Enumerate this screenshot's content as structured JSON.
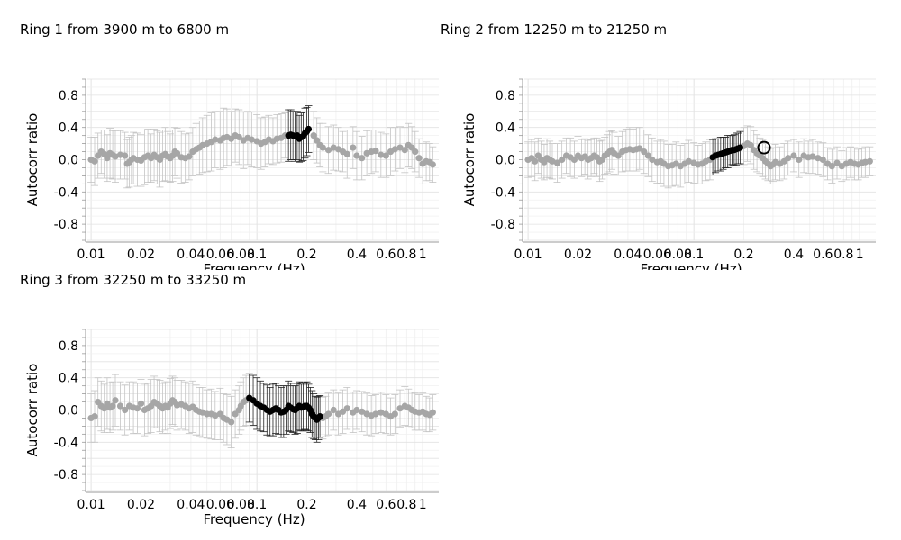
{
  "chart_data": [
    {
      "type": "scatter",
      "title": "Ring 1 from 3900 m to 6800 m",
      "xlabel": "Frequency (Hz)",
      "ylabel": "Autocorr ratio",
      "xscale": "log",
      "xlim": [
        0.0095,
        1.25
      ],
      "ylim": [
        -1.0,
        1.0
      ],
      "xticks": [
        0.01,
        0.02,
        0.04,
        0.06,
        0.08,
        0.1,
        0.2,
        0.4,
        0.6,
        0.8,
        1
      ],
      "xtick_labels": [
        "0.01",
        "0.02",
        "0.04",
        "0.06",
        "0.08",
        "0.1",
        "0.2",
        "0.4",
        "0.6",
        "0.8",
        "1"
      ],
      "yticks": [
        -0.8,
        -0.4,
        0.0,
        0.4,
        0.8
      ],
      "ytick_labels": [
        "-0.8",
        "-0.4",
        "0.0",
        "0.4",
        "0.8"
      ],
      "grid": true,
      "series": [
        {
          "color": "#a6a6a6",
          "x": [
            0.01,
            0.0105,
            0.011,
            0.0115,
            0.012,
            0.0125,
            0.013,
            0.0135,
            0.014,
            0.015,
            0.016,
            0.0165,
            0.017,
            0.0175,
            0.018,
            0.019,
            0.02,
            0.021,
            0.022,
            0.023,
            0.024,
            0.025,
            0.026,
            0.027,
            0.028,
            0.029,
            0.03,
            0.031,
            0.032,
            0.033,
            0.035,
            0.037,
            0.039,
            0.041,
            0.043,
            0.045,
            0.047,
            0.05,
            0.053,
            0.056,
            0.06,
            0.063,
            0.066,
            0.07,
            0.074,
            0.078,
            0.083,
            0.088,
            0.093,
            0.1,
            0.106,
            0.112,
            0.118,
            0.125,
            0.132,
            0.14,
            0.148,
            0.22,
            0.23,
            0.24,
            0.25,
            0.27,
            0.29,
            0.31,
            0.33,
            0.35,
            0.38,
            0.4,
            0.43,
            0.46,
            0.49,
            0.52,
            0.56,
            0.6,
            0.64,
            0.68,
            0.73,
            0.78,
            0.82,
            0.86,
            0.9,
            0.95,
            1.0,
            1.05,
            1.1,
            1.15
          ],
          "y": [
            0.0,
            -0.02,
            0.05,
            0.1,
            0.07,
            0.02,
            0.08,
            0.06,
            0.04,
            0.06,
            0.05,
            -0.05,
            -0.03,
            0.0,
            0.02,
            0.0,
            -0.01,
            0.03,
            0.05,
            0.02,
            0.06,
            0.03,
            0.0,
            0.05,
            0.07,
            0.04,
            0.02,
            0.05,
            0.1,
            0.08,
            0.03,
            0.02,
            0.04,
            0.1,
            0.13,
            0.15,
            0.18,
            0.2,
            0.22,
            0.25,
            0.24,
            0.27,
            0.28,
            0.26,
            0.3,
            0.28,
            0.24,
            0.27,
            0.25,
            0.23,
            0.2,
            0.22,
            0.25,
            0.23,
            0.26,
            0.27,
            0.3,
            0.3,
            0.24,
            0.18,
            0.15,
            0.12,
            0.15,
            0.13,
            0.1,
            0.07,
            0.15,
            0.05,
            0.02,
            0.08,
            0.1,
            0.11,
            0.06,
            0.05,
            0.1,
            0.13,
            0.15,
            0.12,
            0.18,
            0.15,
            0.1,
            0.02,
            -0.05,
            -0.02,
            -0.03,
            -0.06
          ],
          "err": [
            0.28,
            0.3,
            0.28,
            0.27,
            0.3,
            0.29,
            0.31,
            0.3,
            0.32,
            0.3,
            0.29,
            0.3,
            0.31,
            0.3,
            0.32,
            0.33,
            0.32,
            0.34,
            0.33,
            0.3,
            0.32,
            0.33,
            0.34,
            0.32,
            0.33,
            0.31,
            0.3,
            0.32,
            0.3,
            0.31,
            0.32,
            0.3,
            0.29,
            0.3,
            0.32,
            0.33,
            0.34,
            0.35,
            0.36,
            0.35,
            0.36,
            0.37,
            0.35,
            0.34,
            0.33,
            0.34,
            0.35,
            0.33,
            0.34,
            0.33,
            0.32,
            0.31,
            0.3,
            0.29,
            0.3,
            0.3,
            0.28,
            0.3,
            0.28,
            0.27,
            0.3,
            0.29,
            0.28,
            0.27,
            0.25,
            0.3,
            0.26,
            0.3,
            0.27,
            0.28,
            0.27,
            0.26,
            0.28,
            0.27,
            0.3,
            0.27,
            0.26,
            0.28,
            0.27,
            0.26,
            0.25,
            0.24,
            0.25,
            0.24,
            0.23,
            0.22
          ]
        },
        {
          "color": "#000000",
          "x": [
            0.155,
            0.16,
            0.165,
            0.17,
            0.175,
            0.18,
            0.185,
            0.19,
            0.195,
            0.2,
            0.205
          ],
          "y": [
            0.3,
            0.31,
            0.3,
            0.29,
            0.3,
            0.26,
            0.28,
            0.29,
            0.33,
            0.35,
            0.38
          ],
          "err": [
            0.32,
            0.31,
            0.3,
            0.31,
            0.3,
            0.29,
            0.3,
            0.3,
            0.31,
            0.3,
            0.29
          ]
        }
      ]
    },
    {
      "type": "scatter",
      "title": "Ring 2 from 12250 m to 21250 m",
      "xlabel": "Frequency (Hz)",
      "ylabel": "Autocorr ratio",
      "xscale": "log",
      "xlim": [
        0.0095,
        1.25
      ],
      "ylim": [
        -1.0,
        1.0
      ],
      "xticks": [
        0.01,
        0.02,
        0.04,
        0.06,
        0.08,
        0.1,
        0.2,
        0.4,
        0.6,
        0.8,
        1
      ],
      "xtick_labels": [
        "0.01",
        "0.02",
        "0.04",
        "0.06",
        "0.08",
        "0.1",
        "0.2",
        "0.4",
        "0.6",
        "0.8",
        "1"
      ],
      "yticks": [
        -0.8,
        -0.4,
        0.0,
        0.4,
        0.8
      ],
      "ytick_labels": [
        "-0.8",
        "-0.4",
        "0.0",
        "0.4",
        "0.8"
      ],
      "grid": true,
      "series": [
        {
          "color": "#a6a6a6",
          "x": [
            0.01,
            0.0105,
            0.011,
            0.0115,
            0.012,
            0.0125,
            0.013,
            0.0135,
            0.014,
            0.015,
            0.016,
            0.017,
            0.018,
            0.019,
            0.02,
            0.021,
            0.022,
            0.023,
            0.024,
            0.025,
            0.026,
            0.027,
            0.028,
            0.029,
            0.03,
            0.031,
            0.032,
            0.033,
            0.035,
            0.037,
            0.039,
            0.041,
            0.043,
            0.045,
            0.047,
            0.05,
            0.053,
            0.056,
            0.06,
            0.063,
            0.066,
            0.07,
            0.074,
            0.078,
            0.083,
            0.088,
            0.093,
            0.1,
            0.106,
            0.112,
            0.118,
            0.125,
            0.2,
            0.21,
            0.22,
            0.23,
            0.24,
            0.25,
            0.26,
            0.27,
            0.28,
            0.29,
            0.3,
            0.31,
            0.33,
            0.35,
            0.37,
            0.4,
            0.43,
            0.46,
            0.49,
            0.52,
            0.56,
            0.6,
            0.64,
            0.68,
            0.73,
            0.78,
            0.83,
            0.88,
            0.93,
            0.98,
            1.03,
            1.08,
            1.15
          ],
          "y": [
            0.0,
            0.02,
            -0.02,
            0.05,
            0.0,
            -0.03,
            0.02,
            0.0,
            -0.02,
            -0.04,
            0.0,
            0.05,
            0.03,
            0.0,
            0.05,
            0.02,
            0.04,
            0.0,
            0.02,
            0.05,
            0.03,
            -0.02,
            0.0,
            0.05,
            0.07,
            0.1,
            0.12,
            0.08,
            0.05,
            0.1,
            0.12,
            0.13,
            0.12,
            0.13,
            0.14,
            0.1,
            0.05,
            0.0,
            -0.03,
            -0.02,
            -0.05,
            -0.08,
            -0.07,
            -0.05,
            -0.08,
            -0.05,
            -0.02,
            -0.04,
            -0.06,
            -0.05,
            -0.02,
            0.0,
            0.17,
            0.2,
            0.18,
            0.12,
            0.08,
            0.05,
            0.02,
            -0.02,
            -0.05,
            -0.08,
            -0.06,
            -0.03,
            -0.05,
            -0.02,
            0.02,
            0.05,
            0.0,
            0.05,
            0.03,
            0.04,
            0.02,
            0.0,
            -0.05,
            -0.08,
            -0.04,
            -0.08,
            -0.05,
            -0.03,
            -0.05,
            -0.06,
            -0.04,
            -0.03,
            -0.02
          ],
          "err": [
            0.22,
            0.23,
            0.24,
            0.22,
            0.23,
            0.22,
            0.24,
            0.23,
            0.22,
            0.24,
            0.23,
            0.22,
            0.24,
            0.23,
            0.24,
            0.23,
            0.22,
            0.24,
            0.23,
            0.22,
            0.24,
            0.25,
            0.24,
            0.23,
            0.24,
            0.25,
            0.24,
            0.26,
            0.24,
            0.25,
            0.26,
            0.27,
            0.26,
            0.27,
            0.26,
            0.27,
            0.26,
            0.27,
            0.26,
            0.27,
            0.28,
            0.27,
            0.26,
            0.27,
            0.26,
            0.25,
            0.26,
            0.25,
            0.24,
            0.25,
            0.24,
            0.25,
            0.23,
            0.22,
            0.23,
            0.24,
            0.23,
            0.22,
            0.23,
            0.22,
            0.21,
            0.22,
            0.21,
            0.22,
            0.21,
            0.22,
            0.21,
            0.2,
            0.22,
            0.21,
            0.2,
            0.21,
            0.2,
            0.21,
            0.2,
            0.21,
            0.2,
            0.19,
            0.2,
            0.19,
            0.2,
            0.19,
            0.18,
            0.19,
            0.18
          ]
        },
        {
          "color": "#000000",
          "x": [
            0.13,
            0.135,
            0.14,
            0.145,
            0.15,
            0.155,
            0.16,
            0.165,
            0.17,
            0.175,
            0.18,
            0.185,
            0.19
          ],
          "y": [
            0.03,
            0.05,
            0.06,
            0.07,
            0.08,
            0.09,
            0.1,
            0.11,
            0.12,
            0.12,
            0.13,
            0.14,
            0.15
          ],
          "err": [
            0.22,
            0.21,
            0.2,
            0.21,
            0.2,
            0.19,
            0.2,
            0.19,
            0.18,
            0.19,
            0.2,
            0.19,
            0.2
          ]
        }
      ],
      "circle_marker": {
        "x": 0.265,
        "y": 0.15
      }
    },
    {
      "type": "scatter",
      "title": "Ring 3 from 32250 m to 33250 m",
      "xlabel": "Frequency (Hz)",
      "ylabel": "Autocorr ratio",
      "xscale": "log",
      "xlim": [
        0.0095,
        1.25
      ],
      "ylim": [
        -1.0,
        1.0
      ],
      "xticks": [
        0.01,
        0.02,
        0.04,
        0.06,
        0.08,
        0.1,
        0.2,
        0.4,
        0.6,
        0.8,
        1
      ],
      "xtick_labels": [
        "0.01",
        "0.02",
        "0.04",
        "0.06",
        "0.08",
        "0.1",
        "0.2",
        "0.4",
        "0.6",
        "0.8",
        "1"
      ],
      "yticks": [
        -0.8,
        -0.4,
        0.0,
        0.4,
        0.8
      ],
      "ytick_labels": [
        "-0.8",
        "-0.4",
        "0.0",
        "0.4",
        "0.8"
      ],
      "grid": true,
      "series": [
        {
          "color": "#a6a6a6",
          "x": [
            0.01,
            0.0105,
            0.011,
            0.0115,
            0.012,
            0.0125,
            0.013,
            0.0135,
            0.014,
            0.015,
            0.016,
            0.017,
            0.018,
            0.019,
            0.02,
            0.021,
            0.022,
            0.023,
            0.024,
            0.025,
            0.026,
            0.027,
            0.028,
            0.029,
            0.03,
            0.031,
            0.032,
            0.033,
            0.035,
            0.037,
            0.039,
            0.041,
            0.043,
            0.045,
            0.047,
            0.05,
            0.053,
            0.056,
            0.06,
            0.063,
            0.066,
            0.07,
            0.074,
            0.078,
            0.08,
            0.083,
            0.086,
            0.25,
            0.26,
            0.27,
            0.29,
            0.31,
            0.33,
            0.35,
            0.38,
            0.4,
            0.43,
            0.46,
            0.49,
            0.52,
            0.56,
            0.6,
            0.64,
            0.68,
            0.73,
            0.78,
            0.82,
            0.86,
            0.9,
            0.95,
            1.0,
            1.05,
            1.1,
            1.15
          ],
          "y": [
            -0.1,
            -0.08,
            0.1,
            0.05,
            0.02,
            0.08,
            0.03,
            0.05,
            0.12,
            0.05,
            0.0,
            0.05,
            0.03,
            0.02,
            0.08,
            0.0,
            0.02,
            0.05,
            0.1,
            0.08,
            0.05,
            0.02,
            0.05,
            0.03,
            0.08,
            0.12,
            0.1,
            0.06,
            0.07,
            0.05,
            0.02,
            0.04,
            0.0,
            -0.02,
            -0.03,
            -0.05,
            -0.05,
            -0.07,
            -0.05,
            -0.1,
            -0.12,
            -0.15,
            -0.05,
            0.0,
            0.05,
            0.1,
            0.12,
            -0.1,
            -0.08,
            -0.05,
            0.0,
            -0.05,
            -0.02,
            0.02,
            -0.03,
            0.0,
            -0.02,
            -0.05,
            -0.07,
            -0.05,
            -0.03,
            -0.05,
            -0.08,
            -0.05,
            0.02,
            0.05,
            0.03,
            0.0,
            -0.02,
            -0.03,
            -0.02,
            -0.05,
            -0.06,
            -0.03
          ],
          "err": [
            0.3,
            0.32,
            0.3,
            0.31,
            0.3,
            0.32,
            0.31,
            0.3,
            0.32,
            0.3,
            0.31,
            0.3,
            0.32,
            0.31,
            0.3,
            0.32,
            0.31,
            0.33,
            0.32,
            0.3,
            0.32,
            0.31,
            0.3,
            0.32,
            0.31,
            0.3,
            0.3,
            0.31,
            0.3,
            0.3,
            0.31,
            0.32,
            0.31,
            0.3,
            0.31,
            0.3,
            0.31,
            0.3,
            0.32,
            0.3,
            0.31,
            0.32,
            0.3,
            0.3,
            0.3,
            0.3,
            0.31,
            0.26,
            0.25,
            0.26,
            0.25,
            0.26,
            0.27,
            0.26,
            0.25,
            0.24,
            0.25,
            0.26,
            0.25,
            0.24,
            0.25,
            0.24,
            0.23,
            0.24,
            0.23,
            0.24,
            0.23,
            0.22,
            0.23,
            0.22,
            0.23,
            0.22,
            0.21,
            0.22
          ]
        },
        {
          "color": "#000000",
          "x": [
            0.09,
            0.095,
            0.1,
            0.105,
            0.11,
            0.115,
            0.12,
            0.125,
            0.13,
            0.135,
            0.14,
            0.145,
            0.15,
            0.155,
            0.16,
            0.165,
            0.17,
            0.175,
            0.18,
            0.185,
            0.19,
            0.195,
            0.2,
            0.205,
            0.21,
            0.215,
            0.22,
            0.225,
            0.23,
            0.235,
            0.24
          ],
          "y": [
            0.15,
            0.12,
            0.08,
            0.05,
            0.03,
            0.0,
            -0.02,
            0.0,
            0.02,
            0.0,
            -0.03,
            -0.02,
            0.0,
            0.05,
            0.03,
            0.01,
            0.0,
            0.02,
            0.05,
            0.03,
            0.04,
            0.05,
            0.05,
            0.03,
            0.0,
            -0.05,
            -0.08,
            -0.1,
            -0.12,
            -0.1,
            -0.08
          ],
          "err": [
            0.3,
            0.31,
            0.32,
            0.31,
            0.3,
            0.31,
            0.3,
            0.32,
            0.31,
            0.3,
            0.31,
            0.32,
            0.3,
            0.31,
            0.3,
            0.29,
            0.3,
            0.31,
            0.3,
            0.29,
            0.3,
            0.29,
            0.3,
            0.29,
            0.28,
            0.29,
            0.28,
            0.27,
            0.28,
            0.27,
            0.26
          ]
        }
      ]
    }
  ]
}
